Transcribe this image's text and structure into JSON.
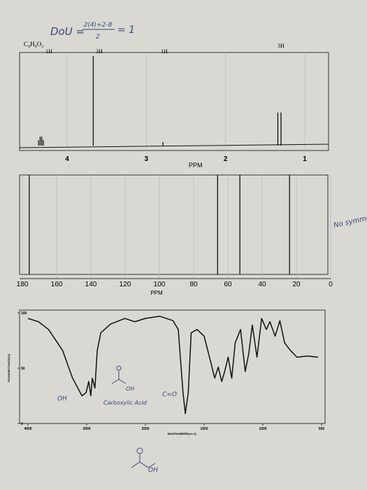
{
  "handwriting": {
    "dou_label": "DoU =",
    "dou_numerator": "2(4)+2-8",
    "dou_denominator": "2",
    "dou_result": "= 1",
    "note": "No symmetry",
    "ir_oh_1": "OH",
    "ir_oh_2": "OH",
    "ir_acid": "Carboxylic Acid",
    "ir_co": "C=O",
    "structure_oh": "OH"
  },
  "h_nmr": {
    "formula": "C₄H₈O₂",
    "integrations": [
      "1H",
      "3H",
      "1H",
      "3H"
    ],
    "x_label": "PPM",
    "xlim": [
      4.6,
      0.7
    ],
    "xticks": [
      4,
      3,
      2,
      1
    ],
    "ylim": [
      0,
      100
    ],
    "peaks": {
      "ppm": [
        4.36,
        4.34,
        4.32,
        4.3,
        3.67,
        2.79,
        1.34,
        1.3
      ],
      "intensity": [
        6,
        10,
        10,
        6,
        100,
        4,
        37,
        37
      ]
    }
  },
  "c_nmr": {
    "x_label": "PPM",
    "xlim": [
      180,
      0
    ],
    "xticks": [
      180,
      160,
      140,
      120,
      100,
      80,
      60,
      40,
      20,
      0
    ],
    "ylim": [
      0,
      100
    ],
    "peaks": {
      "ppm": [
        176,
        66,
        53,
        24
      ],
      "intensity": [
        100,
        100,
        100,
        100
      ]
    }
  },
  "ir": {
    "x_label": "WAVENUMBER[cm-1]",
    "y_label": "TRANSMITTANCE[%]",
    "xticks": [
      4000,
      3000,
      2000,
      1500,
      1000,
      500
    ],
    "yticks": [
      100,
      50,
      0
    ],
    "ylim": [
      0,
      100
    ],
    "wavenumber": [
      4000,
      3820,
      3650,
      3410,
      3240,
      3080,
      3010,
      2965,
      2930,
      2905,
      2860,
      2820,
      2760,
      2590,
      2350,
      2180,
      2000,
      1880,
      1765,
      1720,
      1680,
      1660,
      1635,
      1610,
      1560,
      1500,
      1440,
      1410,
      1380,
      1350,
      1325,
      1295,
      1265,
      1235,
      1190,
      1150,
      1120,
      1090,
      1050,
      1010,
      970,
      940,
      895,
      855,
      815,
      765,
      710,
      620,
      530
    ],
    "transmittance": [
      95,
      92,
      85,
      66,
      41,
      25,
      28,
      38,
      25,
      41,
      32,
      66,
      82,
      90,
      95,
      92,
      95,
      97,
      93,
      85,
      28,
      9,
      28,
      82,
      85,
      79,
      54,
      41,
      51,
      38,
      47,
      60,
      41,
      73,
      85,
      47,
      63,
      89,
      60,
      95,
      85,
      92,
      79,
      93,
      73,
      66,
      60,
      61,
      60
    ]
  }
}
